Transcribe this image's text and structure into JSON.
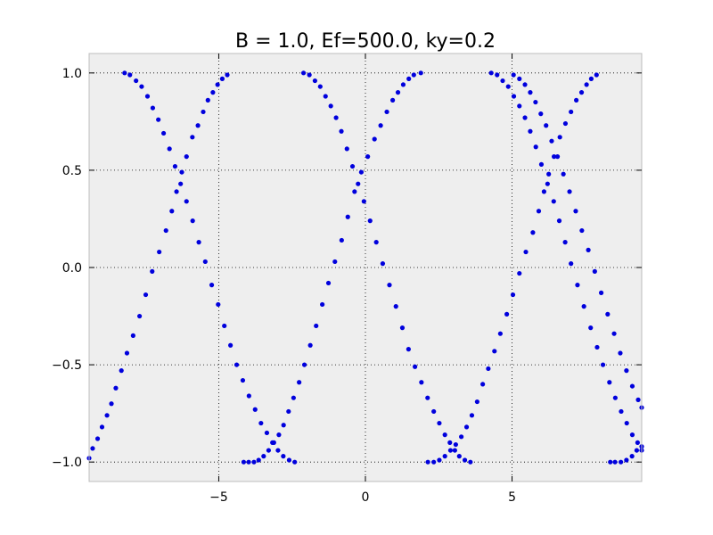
{
  "chart_data": {
    "type": "scatter",
    "title": "B = 1.0, Ef=500.0, ky=0.2",
    "xlabel": "",
    "ylabel": "",
    "xlim": [
      -9.42,
      9.42
    ],
    "ylim": [
      -1.1,
      1.1
    ],
    "x_ticks": [
      -5,
      0,
      5
    ],
    "x_tick_labels": [
      "−5",
      "0",
      "5"
    ],
    "y_ticks": [
      1.0,
      0.5,
      0.0,
      -0.5,
      -1.0
    ],
    "y_tick_labels": [
      "1.0",
      "0.5",
      "0.0",
      "−0.5",
      "−1.0"
    ],
    "grid": true,
    "grid_style": "dotted",
    "legend": "none",
    "series": [
      {
        "color": "#0000dd",
        "points": [
          [
            -9.42,
            -0.98
          ],
          [
            -9.3,
            -0.93
          ],
          [
            -9.13,
            -0.88
          ],
          [
            -8.98,
            -0.82
          ],
          [
            -8.81,
            -0.76
          ],
          [
            -8.66,
            -0.7
          ],
          [
            -8.51,
            -0.62
          ],
          [
            -8.32,
            -0.53
          ],
          [
            -8.13,
            -0.44
          ],
          [
            -7.92,
            -0.35
          ],
          [
            -7.7,
            -0.25
          ],
          [
            -7.49,
            -0.14
          ],
          [
            -7.27,
            -0.02
          ],
          [
            -7.03,
            0.08
          ],
          [
            -6.8,
            0.19
          ],
          [
            -6.6,
            0.29
          ],
          [
            -6.44,
            0.39
          ],
          [
            -6.26,
            0.49
          ],
          [
            -6.1,
            0.57
          ],
          [
            -5.9,
            0.67
          ],
          [
            -5.71,
            0.73
          ],
          [
            -5.53,
            0.8
          ],
          [
            -5.37,
            0.86
          ],
          [
            -5.2,
            0.9
          ],
          [
            -5.04,
            0.94
          ],
          [
            -4.88,
            0.97
          ],
          [
            -4.71,
            0.99
          ],
          [
            -4.15,
            -1.0
          ],
          [
            -3.98,
            -1.0
          ],
          [
            -3.8,
            -1.0
          ],
          [
            -3.64,
            -0.99
          ],
          [
            -3.47,
            -0.97
          ],
          [
            -3.3,
            -0.94
          ],
          [
            -3.12,
            -0.9
          ],
          [
            -2.95,
            -0.86
          ],
          [
            -2.79,
            -0.81
          ],
          [
            -2.62,
            -0.74
          ],
          [
            -2.45,
            -0.67
          ],
          [
            -2.26,
            -0.59
          ],
          [
            -2.08,
            -0.5
          ],
          [
            -1.88,
            -0.4
          ],
          [
            -1.68,
            -0.3
          ],
          [
            -1.47,
            -0.19
          ],
          [
            -1.26,
            -0.08
          ],
          [
            -1.04,
            0.03
          ],
          [
            -0.81,
            0.14
          ],
          [
            -0.6,
            0.26
          ],
          [
            -0.37,
            0.39
          ],
          [
            -0.14,
            0.49
          ],
          [
            0.08,
            0.57
          ],
          [
            0.31,
            0.66
          ],
          [
            0.52,
            0.73
          ],
          [
            0.73,
            0.8
          ],
          [
            0.93,
            0.86
          ],
          [
            1.11,
            0.9
          ],
          [
            1.29,
            0.94
          ],
          [
            1.48,
            0.97
          ],
          [
            1.65,
            0.99
          ],
          [
            1.89,
            1.0
          ],
          [
            2.13,
            -1.0
          ],
          [
            2.33,
            -1.0
          ],
          [
            2.52,
            -0.99
          ],
          [
            2.71,
            -0.97
          ],
          [
            2.9,
            -0.94
          ],
          [
            3.08,
            -0.91
          ],
          [
            3.27,
            -0.87
          ],
          [
            3.45,
            -0.82
          ],
          [
            3.63,
            -0.76
          ],
          [
            3.81,
            -0.69
          ],
          [
            4.0,
            -0.6
          ],
          [
            4.19,
            -0.52
          ],
          [
            4.4,
            -0.43
          ],
          [
            4.6,
            -0.34
          ],
          [
            4.82,
            -0.24
          ],
          [
            5.03,
            -0.14
          ],
          [
            5.25,
            -0.03
          ],
          [
            5.47,
            0.08
          ],
          [
            5.71,
            0.18
          ],
          [
            5.91,
            0.29
          ],
          [
            6.09,
            0.39
          ],
          [
            6.25,
            0.48
          ],
          [
            6.43,
            0.57
          ],
          [
            6.63,
            0.67
          ],
          [
            6.82,
            0.74
          ],
          [
            7.01,
            0.8
          ],
          [
            7.19,
            0.86
          ],
          [
            7.37,
            0.9
          ],
          [
            7.54,
            0.94
          ],
          [
            7.7,
            0.97
          ],
          [
            7.88,
            0.99
          ],
          [
            8.35,
            -1.0
          ],
          [
            8.51,
            -1.0
          ],
          [
            8.71,
            -1.0
          ],
          [
            8.9,
            -0.99
          ],
          [
            9.09,
            -0.97
          ],
          [
            9.25,
            -0.94
          ],
          [
            9.42,
            -0.92
          ],
          [
            -8.21,
            1.0
          ],
          [
            -8.03,
            0.99
          ],
          [
            -7.82,
            0.96
          ],
          [
            -7.63,
            0.93
          ],
          [
            -7.43,
            0.88
          ],
          [
            -7.25,
            0.82
          ],
          [
            -7.06,
            0.76
          ],
          [
            -6.88,
            0.69
          ],
          [
            -6.68,
            0.61
          ],
          [
            -6.49,
            0.52
          ],
          [
            -6.3,
            0.43
          ],
          [
            -6.1,
            0.34
          ],
          [
            -5.89,
            0.24
          ],
          [
            -5.68,
            0.13
          ],
          [
            -5.46,
            0.03
          ],
          [
            -5.24,
            -0.09
          ],
          [
            -5.02,
            -0.19
          ],
          [
            -4.81,
            -0.3
          ],
          [
            -4.6,
            -0.4
          ],
          [
            -4.39,
            -0.5
          ],
          [
            -4.18,
            -0.58
          ],
          [
            -3.97,
            -0.66
          ],
          [
            -3.76,
            -0.73
          ],
          [
            -3.56,
            -0.8
          ],
          [
            -3.36,
            -0.85
          ],
          [
            -3.17,
            -0.9
          ],
          [
            -2.98,
            -0.94
          ],
          [
            -2.8,
            -0.97
          ],
          [
            -2.6,
            -0.99
          ],
          [
            -2.41,
            -1.0
          ],
          [
            -2.11,
            1.0
          ],
          [
            -1.91,
            0.99
          ],
          [
            -1.72,
            0.96
          ],
          [
            -1.54,
            0.93
          ],
          [
            -1.36,
            0.88
          ],
          [
            -1.18,
            0.83
          ],
          [
            -1.0,
            0.77
          ],
          [
            -0.82,
            0.7
          ],
          [
            -0.63,
            0.61
          ],
          [
            -0.44,
            0.52
          ],
          [
            -0.25,
            0.43
          ],
          [
            -0.05,
            0.34
          ],
          [
            0.16,
            0.24
          ],
          [
            0.37,
            0.13
          ],
          [
            0.59,
            0.02
          ],
          [
            0.82,
            -0.09
          ],
          [
            1.04,
            -0.2
          ],
          [
            1.26,
            -0.31
          ],
          [
            1.47,
            -0.42
          ],
          [
            1.69,
            -0.51
          ],
          [
            1.91,
            -0.59
          ],
          [
            2.12,
            -0.67
          ],
          [
            2.33,
            -0.74
          ],
          [
            2.52,
            -0.8
          ],
          [
            2.71,
            -0.86
          ],
          [
            2.88,
            -0.9
          ],
          [
            3.05,
            -0.94
          ],
          [
            3.2,
            -0.97
          ],
          [
            3.39,
            -0.99
          ],
          [
            3.58,
            -1.0
          ],
          [
            4.29,
            1.0
          ],
          [
            4.49,
            0.99
          ],
          [
            4.68,
            0.96
          ],
          [
            4.87,
            0.93
          ],
          [
            5.06,
            0.88
          ],
          [
            5.25,
            0.83
          ],
          [
            5.44,
            0.77
          ],
          [
            5.62,
            0.7
          ],
          [
            5.81,
            0.62
          ],
          [
            6.0,
            0.53
          ],
          [
            6.21,
            0.43
          ],
          [
            6.42,
            0.34
          ],
          [
            6.61,
            0.24
          ],
          [
            6.81,
            0.13
          ],
          [
            7.01,
            0.02
          ],
          [
            7.23,
            -0.09
          ],
          [
            7.45,
            -0.2
          ],
          [
            7.68,
            -0.31
          ],
          [
            7.9,
            -0.41
          ],
          [
            8.1,
            -0.5
          ],
          [
            8.32,
            -0.59
          ],
          [
            8.52,
            -0.67
          ],
          [
            8.72,
            -0.74
          ],
          [
            8.91,
            -0.8
          ],
          [
            9.1,
            -0.86
          ],
          [
            9.28,
            -0.9
          ],
          [
            9.42,
            -0.94
          ],
          [
            5.05,
            0.99
          ],
          [
            5.25,
            0.97
          ],
          [
            5.44,
            0.94
          ],
          [
            5.62,
            0.9
          ],
          [
            5.8,
            0.85
          ],
          [
            5.98,
            0.79
          ],
          [
            6.16,
            0.73
          ],
          [
            6.35,
            0.65
          ],
          [
            6.55,
            0.57
          ],
          [
            6.75,
            0.48
          ],
          [
            6.96,
            0.39
          ],
          [
            7.17,
            0.29
          ],
          [
            7.38,
            0.19
          ],
          [
            7.6,
            0.09
          ],
          [
            7.82,
            -0.02
          ],
          [
            8.04,
            -0.13
          ],
          [
            8.26,
            -0.24
          ],
          [
            8.48,
            -0.34
          ],
          [
            8.69,
            -0.44
          ],
          [
            8.9,
            -0.53
          ],
          [
            9.1,
            -0.61
          ],
          [
            9.3,
            -0.68
          ],
          [
            9.42,
            -0.72
          ]
        ]
      }
    ]
  }
}
